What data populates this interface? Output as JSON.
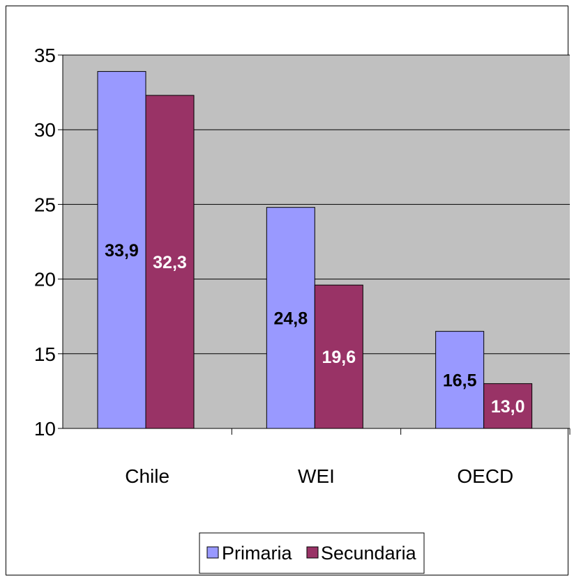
{
  "chart_data": {
    "type": "bar",
    "title": "",
    "xlabel": "",
    "ylabel": "",
    "categories": [
      "Chile",
      "WEI",
      "OECD"
    ],
    "series": [
      {
        "name": "Primaria",
        "values": [
          33.9,
          24.8,
          16.5
        ],
        "labels": [
          "33,9",
          "24,8",
          "16,5"
        ],
        "color": "#9999ff",
        "label_color": "#000000"
      },
      {
        "name": "Secundaria",
        "values": [
          32.3,
          19.6,
          13.0
        ],
        "labels": [
          "32,3",
          "19,6",
          "13,0"
        ],
        "color": "#993366",
        "label_color": "#ffffff"
      }
    ],
    "ylim": [
      10,
      35
    ],
    "yticks": [
      10,
      15,
      20,
      25,
      30,
      35
    ],
    "grid": true,
    "plot_background": "#c0c0c0",
    "legend_position": "bottom"
  }
}
